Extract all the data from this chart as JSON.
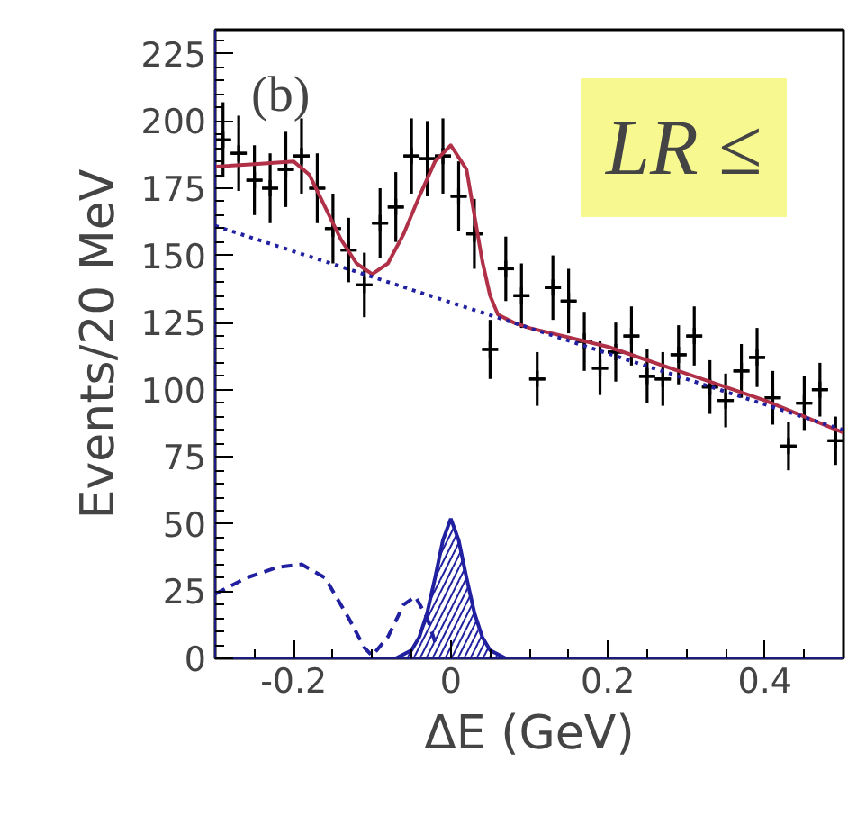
{
  "chart_data": {
    "type": "scatter",
    "xlabel": "ΔE (GeV)",
    "ylabel": "Events/20 MeV",
    "xlim": [
      -0.3,
      0.5
    ],
    "ylim": [
      0,
      234
    ],
    "xticks": [
      -0.2,
      0,
      0.2,
      0.4
    ],
    "yticks": [
      0,
      25,
      50,
      75,
      100,
      125,
      150,
      175,
      200,
      225
    ],
    "annotations": [
      "(b)",
      "LR ≤"
    ],
    "series": [
      {
        "color": "#000000",
        "marker": "cross",
        "x": [
          -0.29,
          -0.27,
          -0.25,
          -0.23,
          -0.21,
          -0.19,
          -0.17,
          -0.15,
          -0.13,
          -0.11,
          -0.09,
          -0.07,
          -0.05,
          -0.03,
          -0.01,
          0.01,
          0.03,
          0.05,
          0.07,
          0.09,
          0.11,
          0.13,
          0.15,
          0.17,
          0.19,
          0.21,
          0.23,
          0.25,
          0.27,
          0.29,
          0.31,
          0.33,
          0.35,
          0.37,
          0.39,
          0.41,
          0.43,
          0.45,
          0.47,
          0.49
        ],
        "values": [
          193,
          188,
          178,
          175,
          182,
          187,
          175,
          160,
          152,
          139,
          162,
          168,
          187,
          186,
          187,
          172,
          158,
          115,
          145,
          135,
          104,
          138,
          133,
          118,
          108,
          114,
          120,
          105,
          104,
          113,
          120,
          101,
          96,
          107,
          112,
          97,
          79,
          95,
          100,
          81
        ],
        "errors": [
          14,
          14,
          13,
          13,
          14,
          14,
          13,
          13,
          12,
          12,
          13,
          13,
          14,
          14,
          14,
          13,
          13,
          11,
          12,
          12,
          10,
          12,
          12,
          11,
          10,
          11,
          11,
          10,
          10,
          11,
          11,
          10,
          10,
          10,
          11,
          10,
          9,
          10,
          10,
          9
        ],
        "xerrors": [
          0.01,
          0.01,
          0.01,
          0.01,
          0.01,
          0.01,
          0.01,
          0.01,
          0.01,
          0.01,
          0.01,
          0.01,
          0.01,
          0.01,
          0.01,
          0.01,
          0.01,
          0.01,
          0.01,
          0.01,
          0.01,
          0.01,
          0.01,
          0.01,
          0.01,
          0.01,
          0.01,
          0.01,
          0.01,
          0.01,
          0.01,
          0.01,
          0.01,
          0.01,
          0.01,
          0.01,
          0.01,
          0.01,
          0.01,
          0.01
        ]
      },
      {
        "type": "line",
        "color": "#b03048",
        "line_style": "solid",
        "x": [
          -0.3,
          -0.25,
          -0.2,
          -0.18,
          -0.16,
          -0.14,
          -0.12,
          -0.1,
          -0.08,
          -0.06,
          -0.04,
          -0.02,
          0,
          0.02,
          0.03,
          0.04,
          0.05,
          0.06,
          0.08,
          0.1,
          0.2,
          0.3,
          0.4,
          0.5
        ],
        "values": [
          183,
          184,
          185,
          180,
          168,
          156,
          147,
          143,
          147,
          158,
          172,
          185,
          191,
          182,
          165,
          148,
          135,
          128,
          125,
          123,
          116,
          106,
          96,
          84
        ]
      },
      {
        "type": "line",
        "color": "#2020a0",
        "line_style": "dotted",
        "x": [
          -0.3,
          -0.1,
          0.1,
          0.3,
          0.5
        ],
        "values": [
          161,
          142,
          123,
          104,
          85
        ]
      },
      {
        "type": "line",
        "color": "#2020a0",
        "line_style": "dashed",
        "x": [
          -0.3,
          -0.26,
          -0.22,
          -0.19,
          -0.16,
          -0.13,
          -0.11,
          -0.1,
          -0.08,
          -0.06,
          -0.045,
          -0.03,
          -0.02
        ],
        "values": [
          24,
          30,
          34,
          35,
          30,
          15,
          4,
          1,
          8,
          20,
          23,
          15,
          6
        ]
      },
      {
        "type": "area",
        "color": "#2020a0",
        "x": [
          -0.07,
          -0.05,
          -0.04,
          -0.03,
          -0.02,
          -0.01,
          0,
          0.01,
          0.02,
          0.03,
          0.04,
          0.05,
          0.07
        ],
        "values": [
          0,
          3,
          8,
          17,
          30,
          44,
          52,
          44,
          30,
          17,
          8,
          3,
          0
        ]
      }
    ]
  }
}
